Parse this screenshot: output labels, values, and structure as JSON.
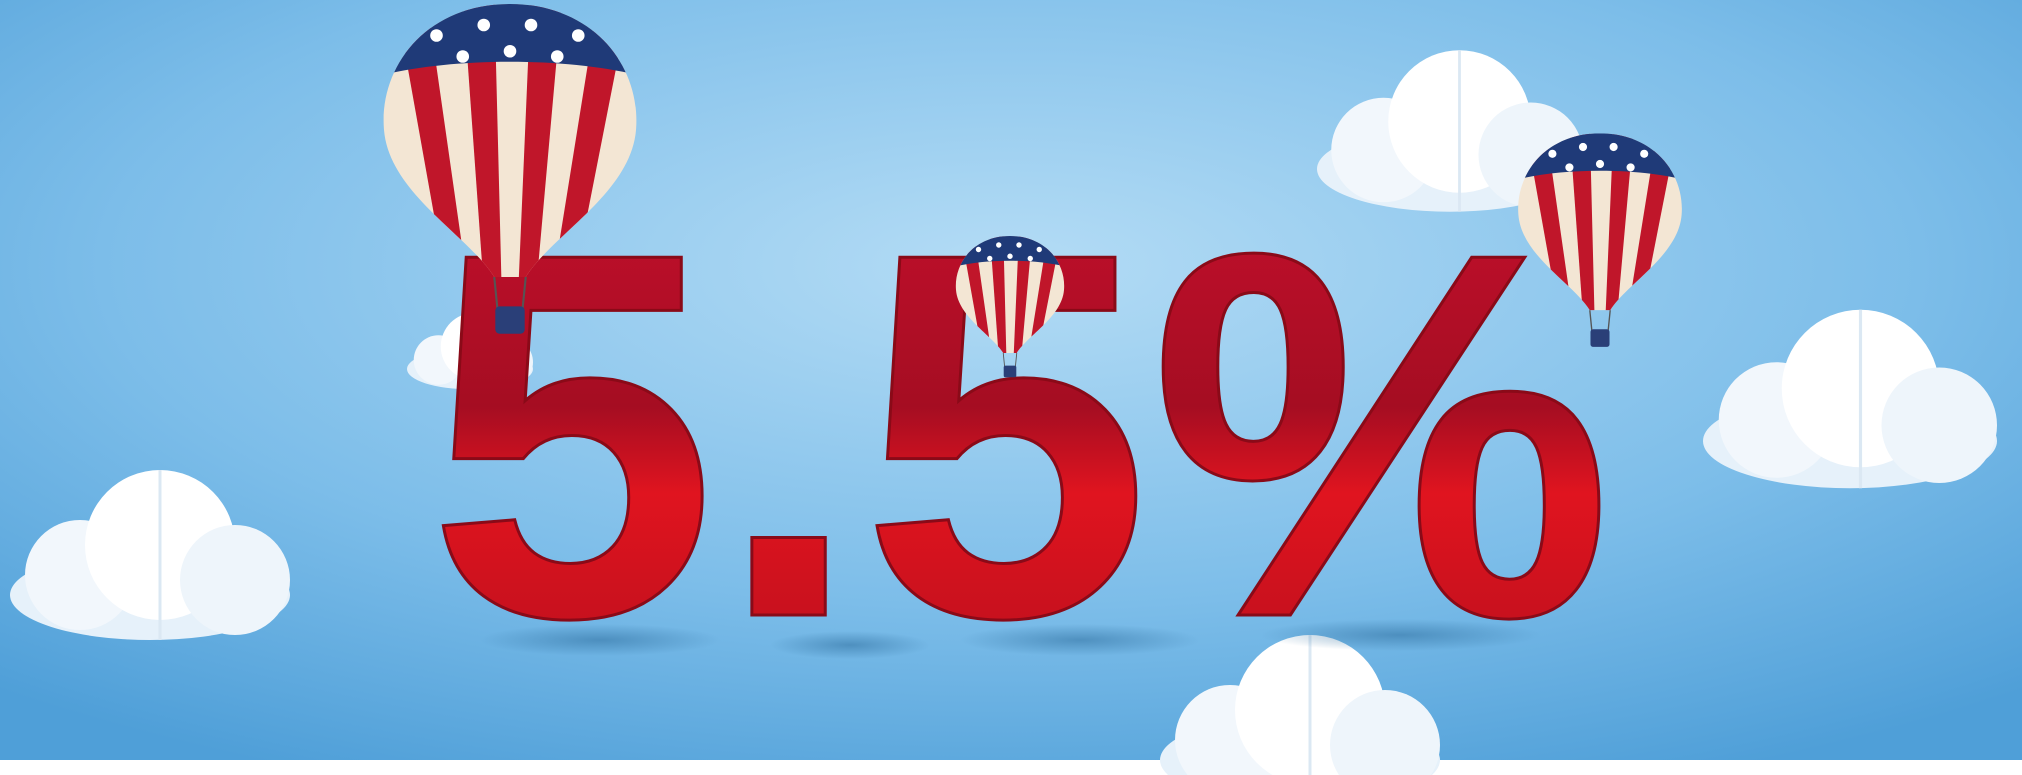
{
  "banner": {
    "headline": "5.5%"
  }
}
